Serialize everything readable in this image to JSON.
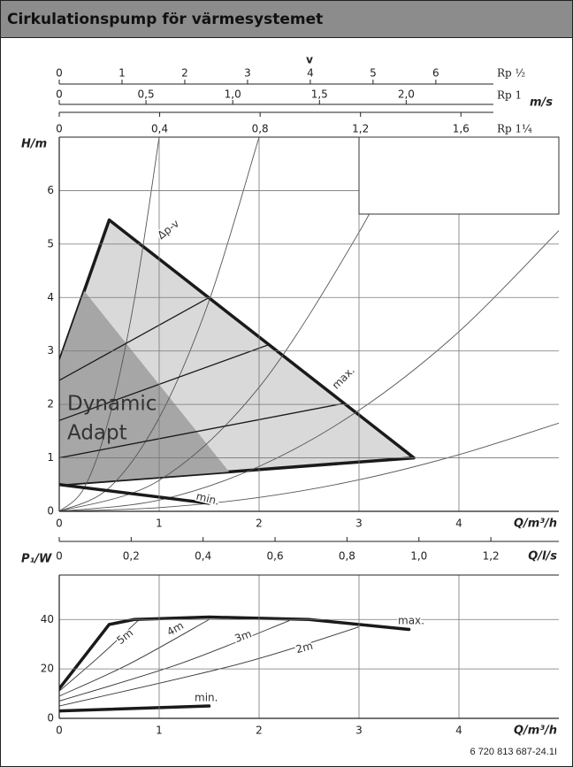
{
  "title": "Cirkulationspump för värmesystemet",
  "code": "6 720 813 687-24.1I",
  "chart_data": [
    {
      "type": "line",
      "xlabel": "Q/m³/h",
      "ylabel": "H/m",
      "xlim": [
        0,
        5
      ],
      "ylim": [
        0,
        7
      ],
      "xticks": [
        0,
        1,
        2,
        3,
        4
      ],
      "yticks": [
        0,
        1,
        2,
        3,
        4,
        5,
        6
      ],
      "grid": true,
      "top_axes_title": "v",
      "top_axes_unit": "m/s",
      "top_axes": [
        {
          "label": "Rp ½",
          "lim": [
            0,
            7.96
          ],
          "ticks": [
            0,
            1,
            2,
            3,
            4,
            5,
            6
          ]
        },
        {
          "label": "Rp 1",
          "lim": [
            0,
            2.88
          ],
          "ticks": [
            0,
            {
              "value": 0.5,
              "label": "0,5"
            },
            {
              "value": 1.0,
              "label": "1,0"
            },
            {
              "value": 1.5,
              "label": "1,5"
            },
            {
              "value": 2.0,
              "label": "2,0"
            }
          ]
        },
        {
          "label": "Rp 1¼",
          "lim": [
            0,
            1.99
          ],
          "ticks": [
            0,
            {
              "value": 0.4,
              "label": "0,4"
            },
            {
              "value": 0.8,
              "label": "0,8"
            },
            {
              "value": 1.2,
              "label": "1,2"
            },
            {
              "value": 1.6,
              "label": "1,6"
            }
          ]
        }
      ],
      "series": [
        {
          "style": "fill-light",
          "color": "#d9d9d9",
          "x": [
            0,
            0.5,
            3.55,
            0
          ],
          "values": [
            2.8,
            5.45,
            1.0,
            0.5
          ]
        },
        {
          "style": "fill-dark",
          "color": "#a6a6a6",
          "x": [
            0,
            0,
            0.25,
            1.7
          ],
          "values": [
            0.5,
            2.8,
            4.12,
            0.74
          ]
        },
        {
          "style": "thin",
          "color": "#555555",
          "x": [
            0,
            0.25,
            0.5,
            0.75,
            1.0
          ],
          "values": [
            0,
            0.44,
            1.75,
            3.94,
            7
          ]
        },
        {
          "style": "thin",
          "color": "#555555",
          "x": [
            0,
            0.5,
            1,
            1.5,
            2
          ],
          "values": [
            0,
            0.44,
            1.75,
            3.94,
            7
          ]
        },
        {
          "style": "thin",
          "color": "#555555",
          "x": [
            0,
            1,
            2,
            3,
            3.47
          ],
          "values": [
            0,
            0.58,
            2.32,
            5.22,
            7
          ]
        },
        {
          "style": "thin",
          "color": "#555555",
          "x": [
            0,
            1,
            2,
            3,
            4,
            5
          ],
          "values": [
            0,
            0.21,
            0.84,
            1.89,
            3.36,
            5.25
          ]
        },
        {
          "style": "thin",
          "color": "#555555",
          "x": [
            0,
            1,
            2,
            3,
            4,
            5
          ],
          "values": [
            0,
            0.07,
            0.26,
            0.59,
            1.06,
            1.65
          ]
        },
        {
          "style": "control",
          "color": "#1a1a1a",
          "x": [
            0,
            1.5
          ],
          "values": [
            2.45,
            4.0
          ]
        },
        {
          "style": "control",
          "color": "#1a1a1a",
          "x": [
            0,
            2.1
          ],
          "values": [
            1.7,
            3.12
          ]
        },
        {
          "style": "control",
          "color": "#1a1a1a",
          "x": [
            0,
            2.85
          ],
          "values": [
            1.0,
            2.02
          ]
        },
        {
          "style": "thick",
          "color": "#1a1a1a",
          "x": [
            0,
            1.5
          ],
          "values": [
            0.5,
            0.15
          ]
        }
      ],
      "annotations": [
        "Δp-v",
        "max.",
        "min.",
        "Dynamic",
        "Adapt"
      ]
    },
    {
      "type": "line",
      "xlabel": "Q/m³/h",
      "ylabel": "P₁/W",
      "xlim": [
        0,
        5
      ],
      "ylim": [
        0,
        58
      ],
      "xticks": [
        0,
        1,
        2,
        3,
        4
      ],
      "yticks": [
        0,
        20,
        40
      ],
      "grid": true,
      "x2label": "Q/l/s",
      "x2lim": [
        0,
        1.389
      ],
      "x2ticks": [
        0,
        {
          "value": 0.2,
          "label": "0,2"
        },
        {
          "value": 0.4,
          "label": "0,4"
        },
        {
          "value": 0.6,
          "label": "0,6"
        },
        {
          "value": 0.8,
          "label": "0,8"
        },
        {
          "value": 1.0,
          "label": "1,0"
        },
        {
          "value": 1.2,
          "label": "1,2"
        }
      ],
      "series": [
        {
          "style": "thin",
          "color": "#333333",
          "x": [
            0,
            0.4,
            0.8
          ],
          "values": [
            11,
            25,
            40
          ]
        },
        {
          "style": "thin",
          "color": "#333333",
          "x": [
            0,
            0.7,
            1.5
          ],
          "values": [
            9,
            22,
            40
          ]
        },
        {
          "style": "thin",
          "color": "#333333",
          "x": [
            0,
            1.2,
            2.3
          ],
          "values": [
            7,
            22,
            39.5
          ]
        },
        {
          "style": "thin",
          "color": "#333333",
          "x": [
            0,
            1.8,
            3.0
          ],
          "values": [
            5,
            22,
            37
          ]
        },
        {
          "style": "thick",
          "color": "#1a1a1a",
          "x": [
            0,
            0.5,
            0.75,
            1.5,
            2.5,
            3.5
          ],
          "values": [
            12,
            38,
            40,
            41,
            40,
            36
          ]
        },
        {
          "style": "thick",
          "color": "#1a1a1a",
          "x": [
            0,
            1.5
          ],
          "values": [
            3,
            5
          ]
        }
      ],
      "annotations": [
        "max.",
        "min.",
        "5m",
        "4m",
        "3m",
        "2m"
      ]
    }
  ]
}
